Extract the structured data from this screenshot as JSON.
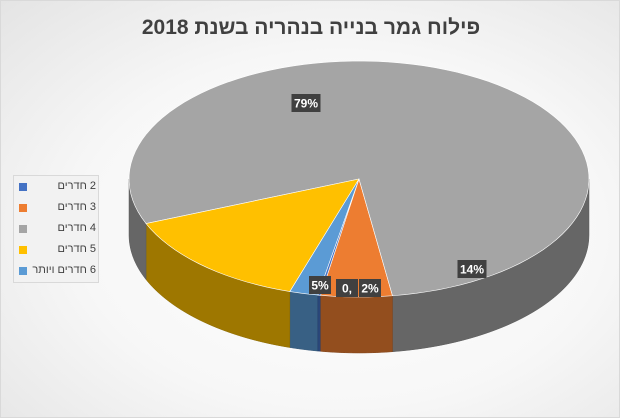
{
  "chart_data": {
    "type": "pie",
    "title": "פילוח גמר בנייה בנהריה בשנת 2018",
    "categories": [
      "2 חדרים",
      "3 חדרים",
      "4 חדרים",
      "5 חדרים",
      "6 חדרים ויותר"
    ],
    "values": [
      0.2,
      5,
      79,
      14,
      2
    ],
    "data_labels": [
      "0,",
      "5%",
      "79%",
      "14%",
      "2%"
    ],
    "colors": [
      "#4472c4",
      "#ed7d31",
      "#a5a5a5",
      "#ffc000",
      "#5b9bd5"
    ],
    "style": "3d",
    "legend_position": "left"
  }
}
